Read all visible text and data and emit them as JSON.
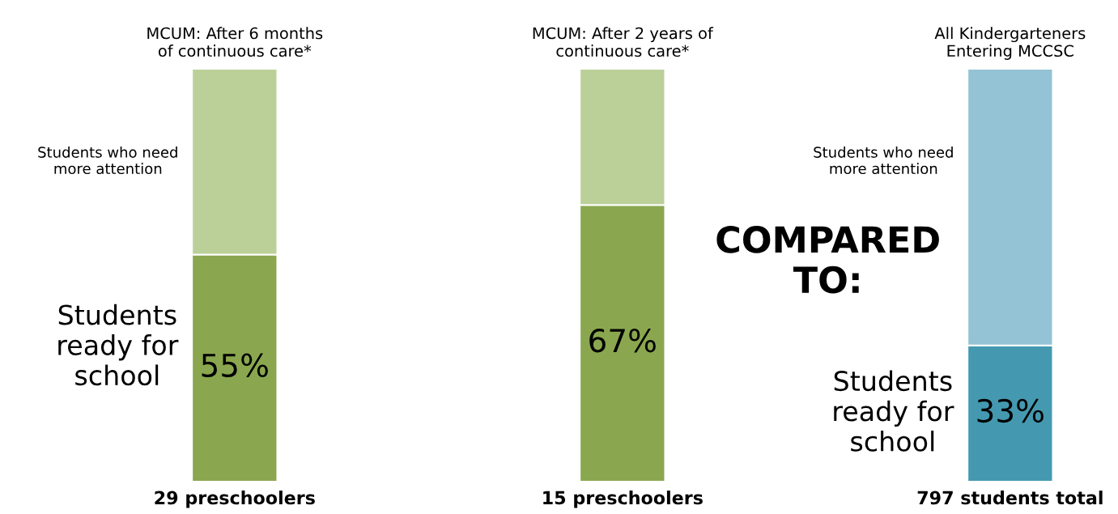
{
  "chart_data": {
    "type": "bar",
    "stacked": true,
    "categories": [
      "MCUM: After 6 months\nof continuous care*",
      "MCUM: After 2 years of\ncontinuous care*",
      "All Kindergarteners\nEntering MCCSC"
    ],
    "series": [
      {
        "name": "Students\nready for\nschool",
        "colors": [
          "#8aa74f",
          "#8aa74f",
          "#4499b0"
        ],
        "values": [
          55,
          67,
          33
        ],
        "value_labels": [
          "55%",
          "67%",
          "33%"
        ]
      },
      {
        "name": "Students who need\nmore attention",
        "colors": [
          "#bbd098",
          "#bbd098",
          "#93c3d4"
        ],
        "values": [
          45,
          33,
          67
        ]
      }
    ],
    "ylim": [
      0,
      100
    ],
    "annotations": [
      "29 preschoolers",
      "15 preschoolers",
      "797 students total",
      "COMPARED\nTO:"
    ]
  }
}
